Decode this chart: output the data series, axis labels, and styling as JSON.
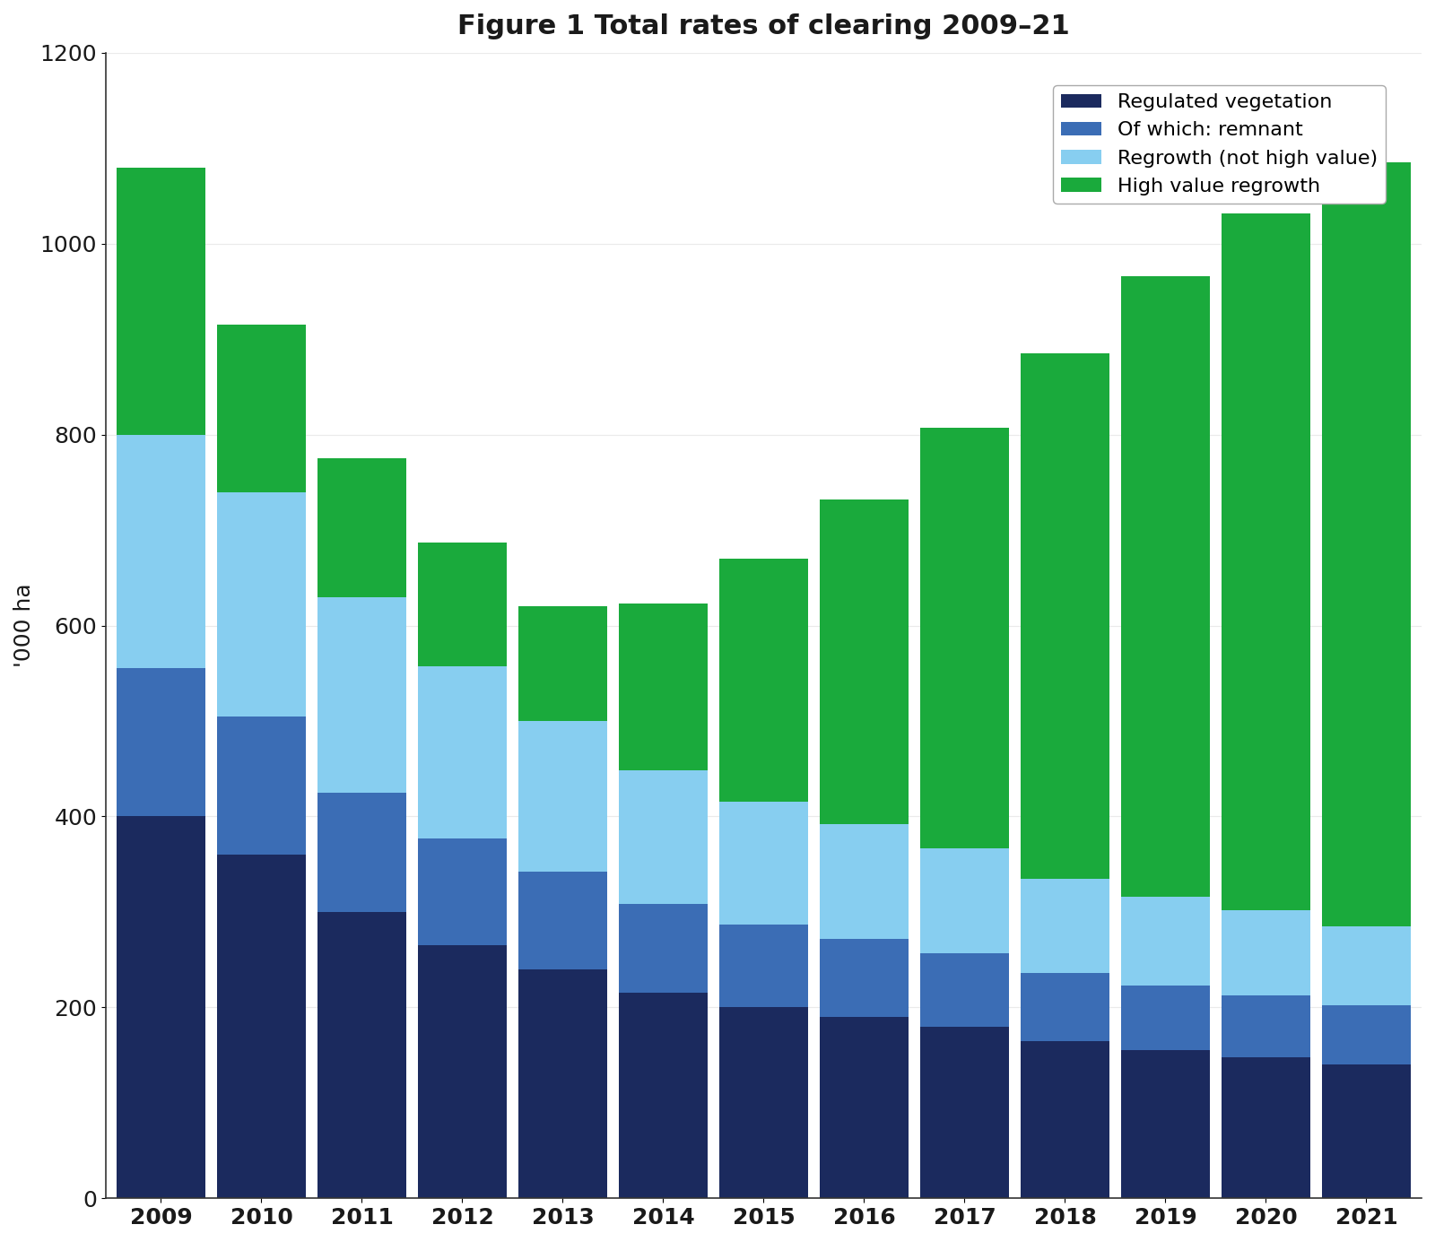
{
  "title": "Figure 1 Total rates of clearing 2009–21",
  "years": [
    2009,
    2010,
    2011,
    2012,
    2013,
    2014,
    2015,
    2016,
    2017,
    2018,
    2019,
    2020,
    2021
  ],
  "series_names": [
    "Regulated vegetation",
    "Of which: remnant",
    "Regrowth (not high value)",
    "High value regrowth"
  ],
  "series_data": [
    [
      400,
      360,
      300,
      265,
      240,
      215,
      200,
      190,
      180,
      165,
      155,
      148,
      140
    ],
    [
      155,
      145,
      125,
      112,
      102,
      93,
      87,
      82,
      77,
      71,
      68,
      65,
      62
    ],
    [
      245,
      235,
      205,
      180,
      158,
      140,
      128,
      120,
      110,
      99,
      93,
      89,
      83
    ],
    [
      280,
      175,
      145,
      130,
      120,
      175,
      255,
      340,
      440,
      550,
      650,
      730,
      800
    ]
  ],
  "colors": [
    "#1b2a5e",
    "#3b6db5",
    "#87cef0",
    "#1aaa3c"
  ],
  "ylabel": "'000 ha",
  "ylim_max": 1200,
  "yticks": [
    0,
    200,
    400,
    600,
    800,
    1000,
    1200
  ],
  "legend_labels": [
    "Regulated vegetation",
    "Of which: remnant",
    "Regrowth (not high value)",
    "High value regrowth"
  ],
  "legend_colors": [
    "#1b2a5e",
    "#3b6db5",
    "#87cef0",
    "#1aaa3c"
  ],
  "bg_color": "#ffffff",
  "title_fontsize": 22,
  "tick_fontsize": 18,
  "label_fontsize": 18,
  "legend_fontsize": 16
}
